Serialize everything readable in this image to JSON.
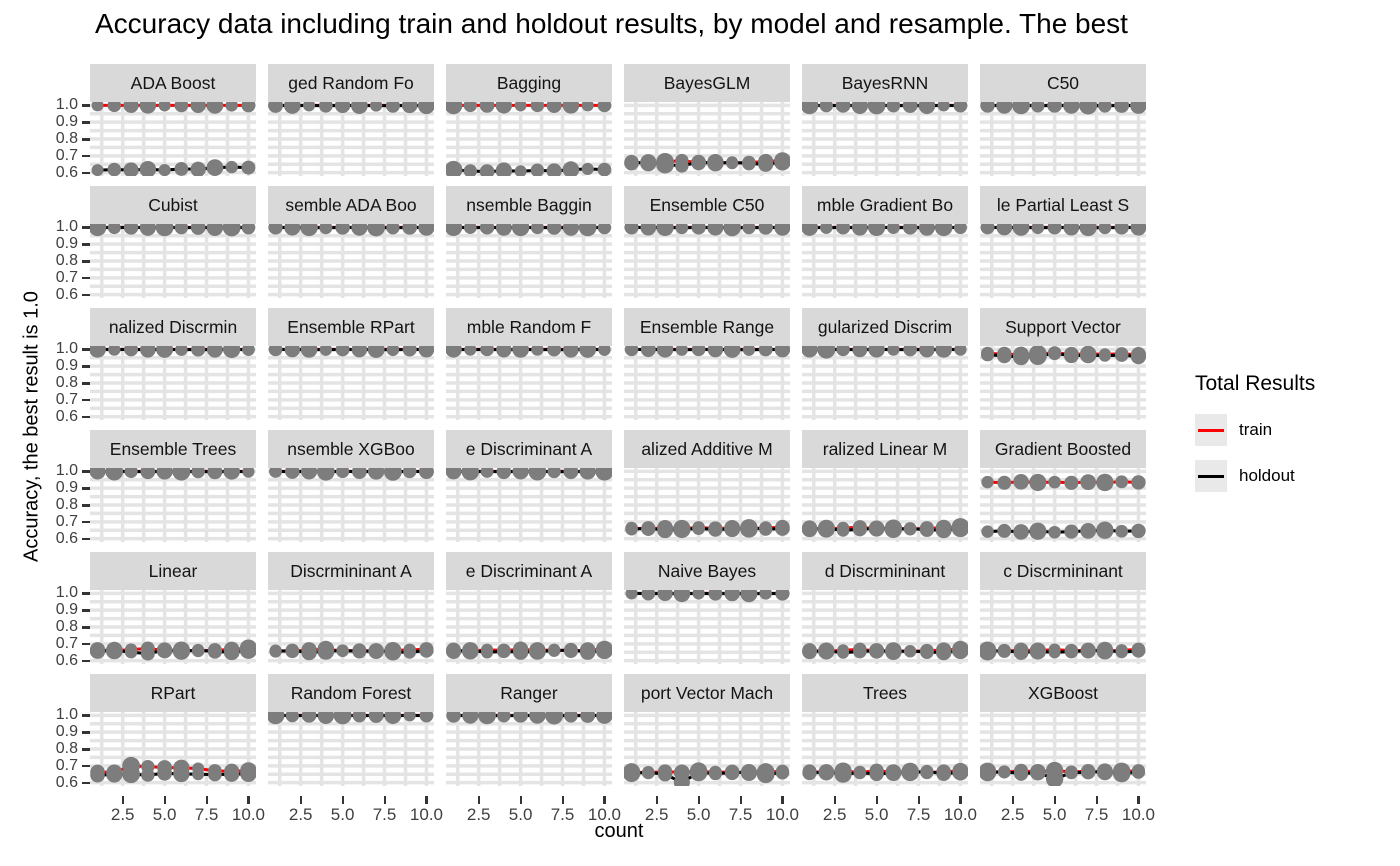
{
  "title": "Accuracy data including train and holdout results, by model and resample. The best",
  "axes": {
    "x_label": "count",
    "y_label": "Accuracy, the best result is 1.0",
    "x_ticks": [
      "2.5",
      "5.0",
      "7.5",
      "10.0"
    ],
    "x_tick_values": [
      2.5,
      5.0,
      7.5,
      10.0
    ],
    "y_ticks": [
      "1.0",
      "0.9",
      "0.8",
      "0.7",
      "0.6"
    ],
    "y_tick_values": [
      1.0,
      0.9,
      0.8,
      0.7,
      0.6
    ]
  },
  "legend": {
    "title": "Total Results",
    "items": [
      {
        "label": "train",
        "color": "#ff0000"
      },
      {
        "label": "holdout",
        "color": "#000000"
      }
    ]
  },
  "colors": {
    "strip_bg": "#d9d9d9",
    "panel_bg": "#ffffff",
    "grid": "#e4e4e4",
    "point": "#7d7d7d",
    "train": "#ff0000",
    "holdout": "#000000",
    "legend_key_bg": "#e9e9e9"
  },
  "chart_data": {
    "type": "line",
    "x": [
      1,
      2,
      3,
      4,
      5,
      6,
      7,
      8,
      9,
      10
    ],
    "x_domain": [
      0.55,
      10.45
    ],
    "y_domain": [
      0.58,
      1.02
    ],
    "grid": {
      "x_major": [
        2.5,
        5.0,
        7.5,
        10.0
      ],
      "x_minor": [
        1.25,
        3.75,
        6.25,
        8.75
      ],
      "y_major": [
        0.6,
        0.7,
        0.8,
        0.9,
        1.0
      ],
      "y_minor": [
        0.65,
        0.75,
        0.85,
        0.95
      ]
    },
    "series_names": [
      "train",
      "holdout"
    ],
    "facets": [
      {
        "title": "ADA Boost",
        "train": [
          1,
          1,
          1,
          1,
          1,
          1,
          1,
          1,
          1,
          1
        ],
        "holdout": [
          0.615,
          0.618,
          0.616,
          0.62,
          0.615,
          0.622,
          0.62,
          0.63,
          0.633,
          0.63
        ]
      },
      {
        "title": "ged Random Fo",
        "train": [
          1,
          1,
          1,
          1,
          1,
          1,
          1,
          1,
          1,
          1
        ],
        "holdout": [
          1,
          0.998,
          1,
          0.997,
          1,
          0.998,
          0.999,
          0.997,
          1,
          0.998
        ]
      },
      {
        "title": "Bagging",
        "train": [
          1,
          1,
          1,
          1,
          1,
          1,
          1,
          1,
          1,
          1
        ],
        "holdout": [
          0.617,
          0.61,
          0.606,
          0.612,
          0.608,
          0.614,
          0.61,
          0.618,
          0.622,
          0.618
        ]
      },
      {
        "title": "BayesGLM",
        "train": [
          0.662,
          0.656,
          0.664,
          0.672,
          0.658,
          0.662,
          0.656,
          0.66,
          0.666,
          0.672
        ],
        "holdout": [
          0.656,
          0.662,
          0.648,
          0.64,
          0.662,
          0.656,
          0.662,
          0.654,
          0.65,
          0.662
        ]
      },
      {
        "title": "BayesRNN",
        "train": [
          1,
          1,
          1,
          1,
          1,
          1,
          1,
          1,
          1,
          1
        ],
        "holdout": [
          1,
          0.998,
          1,
          0.997,
          1,
          0.998,
          0.999,
          0.997,
          1,
          0.998
        ]
      },
      {
        "title": "C50",
        "train": [
          1,
          1,
          1,
          1,
          1,
          1,
          1,
          1,
          1,
          1
        ],
        "holdout": [
          1,
          0.998,
          1,
          0.997,
          1,
          0.998,
          0.999,
          0.997,
          1,
          0.998
        ]
      },
      {
        "title": "Cubist",
        "train": [
          1,
          1,
          1,
          1,
          1,
          1,
          1,
          1,
          1,
          1
        ],
        "holdout": [
          1,
          0.998,
          1,
          0.997,
          1,
          0.998,
          0.999,
          0.997,
          1,
          0.998
        ]
      },
      {
        "title": "semble ADA Boo",
        "train": [
          1,
          1,
          1,
          1,
          1,
          1,
          1,
          1,
          1,
          1
        ],
        "holdout": [
          1,
          0.998,
          1,
          0.997,
          1,
          0.998,
          0.999,
          0.997,
          1,
          0.998
        ]
      },
      {
        "title": "nsemble Baggin",
        "train": [
          1,
          1,
          1,
          1,
          1,
          1,
          1,
          1,
          1,
          1
        ],
        "holdout": [
          1,
          0.998,
          1,
          0.997,
          1,
          0.998,
          0.999,
          0.997,
          1,
          0.998
        ]
      },
      {
        "title": "Ensemble C50",
        "train": [
          1,
          1,
          1,
          1,
          1,
          1,
          1,
          1,
          1,
          1
        ],
        "holdout": [
          1,
          0.998,
          1,
          0.997,
          1,
          0.998,
          0.999,
          0.997,
          1,
          0.998
        ]
      },
      {
        "title": "mble Gradient Bo",
        "train": [
          1,
          1,
          1,
          1,
          1,
          1,
          1,
          1,
          1,
          1
        ],
        "holdout": [
          1,
          0.998,
          1,
          0.997,
          1,
          0.998,
          0.999,
          0.997,
          1,
          0.998
        ]
      },
      {
        "title": "le Partial Least S",
        "train": [
          1,
          1,
          1,
          1,
          1,
          1,
          1,
          1,
          1,
          1
        ],
        "holdout": [
          1,
          0.998,
          1,
          0.997,
          1,
          0.998,
          0.999,
          0.997,
          1,
          0.998
        ]
      },
      {
        "title": "nalized Discrmin",
        "train": [
          1,
          1,
          1,
          1,
          1,
          1,
          1,
          1,
          1,
          1
        ],
        "holdout": [
          1,
          0.998,
          1,
          0.997,
          1,
          0.998,
          0.999,
          0.997,
          1,
          0.998
        ]
      },
      {
        "title": "Ensemble RPart",
        "train": [
          1,
          1,
          1,
          1,
          1,
          1,
          1,
          1,
          1,
          1
        ],
        "holdout": [
          1,
          0.998,
          1,
          0.997,
          1,
          0.998,
          0.999,
          0.997,
          1,
          0.998
        ]
      },
      {
        "title": "mble Random F",
        "train": [
          1,
          1,
          1,
          1,
          1,
          1,
          1,
          1,
          1,
          1
        ],
        "holdout": [
          1,
          0.998,
          1,
          0.997,
          1,
          0.998,
          0.999,
          0.997,
          1,
          0.998
        ]
      },
      {
        "title": "Ensemble Range",
        "train": [
          1,
          1,
          1,
          1,
          1,
          1,
          1,
          1,
          1,
          1
        ],
        "holdout": [
          1,
          0.998,
          1,
          0.997,
          1,
          0.998,
          0.999,
          0.997,
          1,
          0.998
        ]
      },
      {
        "title": "gularized Discrim",
        "train": [
          1,
          1,
          1,
          1,
          1,
          1,
          1,
          1,
          1,
          1
        ],
        "holdout": [
          1,
          0.998,
          1,
          0.997,
          1,
          0.998,
          0.999,
          0.997,
          1,
          0.998
        ]
      },
      {
        "title": "Support Vector",
        "train": [
          0.976,
          0.972,
          0.968,
          0.973,
          0.979,
          0.971,
          0.973,
          0.971,
          0.973,
          0.969
        ],
        "holdout": [
          0.968,
          0.961,
          0.954,
          0.96,
          0.976,
          0.962,
          0.966,
          0.962,
          0.966,
          0.957
        ]
      },
      {
        "title": "Ensemble Trees",
        "train": [
          1,
          1,
          1,
          1,
          1,
          1,
          1,
          1,
          1,
          1
        ],
        "holdout": [
          1,
          0.998,
          1,
          0.997,
          1,
          0.998,
          0.999,
          0.997,
          1,
          0.998
        ]
      },
      {
        "title": "nsemble XGBoo",
        "train": [
          1,
          1,
          1,
          1,
          1,
          1,
          1,
          1,
          1,
          1
        ],
        "holdout": [
          1,
          0.998,
          1,
          0.997,
          1,
          0.998,
          0.999,
          0.997,
          1,
          0.998
        ]
      },
      {
        "title": "e Discriminant A",
        "train": [
          1,
          1,
          1,
          1,
          1,
          1,
          1,
          1,
          1,
          1
        ],
        "holdout": [
          1,
          0.998,
          1,
          0.997,
          1,
          0.998,
          0.999,
          0.997,
          1,
          0.998
        ]
      },
      {
        "title": "alized Additive M",
        "train": [
          0.663,
          0.658,
          0.664,
          0.66,
          0.666,
          0.66,
          0.663,
          0.658,
          0.664,
          0.668
        ],
        "holdout": [
          0.656,
          0.662,
          0.65,
          0.655,
          0.66,
          0.654,
          0.657,
          0.664,
          0.656,
          0.66
        ]
      },
      {
        "title": "ralized Linear M",
        "train": [
          0.662,
          0.657,
          0.663,
          0.668,
          0.659,
          0.662,
          0.657,
          0.661,
          0.665,
          0.67
        ],
        "holdout": [
          0.655,
          0.661,
          0.649,
          0.656,
          0.661,
          0.655,
          0.66,
          0.653,
          0.65,
          0.661
        ]
      },
      {
        "title": "Gradient Boosted",
        "train": [
          0.936,
          0.932,
          0.938,
          0.934,
          0.936,
          0.932,
          0.936,
          0.934,
          0.938,
          0.934
        ],
        "holdout": [
          0.642,
          0.646,
          0.64,
          0.644,
          0.638,
          0.642,
          0.646,
          0.65,
          0.644,
          0.646
        ]
      },
      {
        "title": "Linear",
        "train": [
          0.664,
          0.658,
          0.666,
          0.672,
          0.66,
          0.663,
          0.658,
          0.662,
          0.666,
          0.674
        ],
        "holdout": [
          0.656,
          0.662,
          0.65,
          0.642,
          0.662,
          0.656,
          0.662,
          0.654,
          0.65,
          0.662
        ]
      },
      {
        "title": "Discrmininant A",
        "train": [
          0.66,
          0.656,
          0.664,
          0.668,
          0.658,
          0.661,
          0.656,
          0.66,
          0.664,
          0.668
        ],
        "holdout": [
          0.654,
          0.66,
          0.648,
          0.655,
          0.66,
          0.654,
          0.658,
          0.652,
          0.649,
          0.66
        ]
      },
      {
        "title": "e Discriminant A",
        "train": [
          0.662,
          0.656,
          0.665,
          0.66,
          0.668,
          0.66,
          0.664,
          0.657,
          0.663,
          0.667
        ],
        "holdout": [
          0.655,
          0.661,
          0.649,
          0.656,
          0.65,
          0.655,
          0.659,
          0.664,
          0.651,
          0.66
        ]
      },
      {
        "title": "Naive Bayes",
        "train": [
          1,
          1,
          1,
          1,
          1,
          1,
          1,
          1,
          1,
          1
        ],
        "holdout": [
          1,
          0.998,
          1,
          0.997,
          1,
          0.998,
          0.999,
          0.997,
          1,
          0.998
        ]
      },
      {
        "title": "d Discrmininant",
        "train": [
          0.66,
          0.655,
          0.662,
          0.667,
          0.657,
          0.66,
          0.655,
          0.659,
          0.663,
          0.668
        ],
        "holdout": [
          0.653,
          0.659,
          0.647,
          0.654,
          0.659,
          0.653,
          0.657,
          0.651,
          0.648,
          0.659
        ]
      },
      {
        "title": "c Discrmininant",
        "train": [
          0.661,
          0.656,
          0.663,
          0.659,
          0.666,
          0.659,
          0.662,
          0.656,
          0.662,
          0.666
        ],
        "holdout": [
          0.654,
          0.66,
          0.648,
          0.655,
          0.649,
          0.654,
          0.658,
          0.663,
          0.65,
          0.659
        ]
      },
      {
        "title": "RPart",
        "train": [
          0.664,
          0.66,
          0.7,
          0.695,
          0.69,
          0.688,
          0.684,
          0.67,
          0.668,
          0.672
        ],
        "holdout": [
          0.644,
          0.648,
          0.65,
          0.645,
          0.656,
          0.652,
          0.65,
          0.648,
          0.65,
          0.653
        ]
      },
      {
        "title": "Random Forest",
        "train": [
          1,
          1,
          1,
          1,
          1,
          1,
          1,
          1,
          1,
          1
        ],
        "holdout": [
          1,
          0.998,
          1,
          0.997,
          1,
          0.998,
          0.999,
          0.997,
          1,
          0.998
        ]
      },
      {
        "title": "Ranger",
        "train": [
          1,
          1,
          1,
          1,
          1,
          1,
          1,
          1,
          1,
          1
        ],
        "holdout": [
          1,
          0.998,
          1,
          0.997,
          1,
          0.998,
          0.999,
          0.997,
          1,
          0.998
        ]
      },
      {
        "title": "port Vector Mach",
        "train": [
          0.664,
          0.658,
          0.666,
          0.66,
          0.668,
          0.661,
          0.664,
          0.658,
          0.663,
          0.667
        ],
        "holdout": [
          0.655,
          0.661,
          0.65,
          0.601,
          0.66,
          0.654,
          0.658,
          0.663,
          0.65,
          0.659
        ]
      },
      {
        "title": "Trees",
        "train": [
          0.666,
          0.66,
          0.668,
          0.662,
          0.67,
          0.662,
          0.666,
          0.66,
          0.665,
          0.669
        ],
        "holdout": [
          0.657,
          0.663,
          0.651,
          0.658,
          0.652,
          0.657,
          0.661,
          0.666,
          0.653,
          0.661
        ]
      },
      {
        "title": "XGBoost",
        "train": [
          0.668,
          0.662,
          0.67,
          0.664,
          0.672,
          0.664,
          0.668,
          0.662,
          0.667,
          0.671
        ],
        "holdout": [
          0.659,
          0.665,
          0.653,
          0.66,
          0.622,
          0.658,
          0.662,
          0.667,
          0.654,
          0.662
        ]
      }
    ]
  }
}
